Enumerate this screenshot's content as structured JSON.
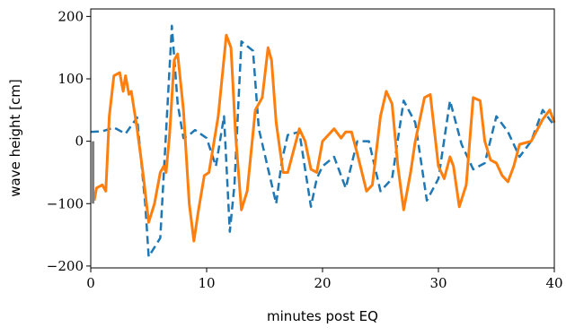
{
  "chart_data": {
    "type": "line",
    "xlabel": "minutes post EQ",
    "ylabel": "wave height [cm]",
    "xlim": [
      0,
      40
    ],
    "ylim": [
      -203,
      212
    ],
    "xticks": [
      0,
      10,
      20,
      30,
      40
    ],
    "yticks": [
      {
        "value": -200,
        "label": "−200"
      },
      {
        "value": -100,
        "label": "−100"
      },
      0,
      100,
      200
    ],
    "series": [
      {
        "color": "#1f77b4",
        "dash": true,
        "x": [
          0,
          1,
          2,
          3,
          4,
          4.7,
          5,
          6,
          7,
          7.5,
          8,
          8.5,
          9,
          10,
          10.8,
          11.5,
          12,
          12.4,
          13,
          14,
          14.5,
          15,
          16,
          16.5,
          17,
          18,
          19,
          19.5,
          20,
          21,
          22,
          23,
          24,
          25,
          26,
          27,
          28,
          29,
          30,
          31,
          32,
          33,
          34,
          35,
          36,
          37,
          38,
          39,
          40
        ],
        "values": [
          15,
          16,
          22,
          12,
          38,
          -100,
          -185,
          -155,
          185,
          60,
          5,
          10,
          18,
          5,
          -40,
          40,
          -145,
          -70,
          160,
          145,
          20,
          -20,
          -100,
          -30,
          10,
          15,
          -105,
          -60,
          -40,
          -25,
          -75,
          0,
          0,
          -80,
          -60,
          65,
          30,
          -95,
          -60,
          65,
          -5,
          -45,
          -35,
          40,
          15,
          -25,
          0,
          50,
          25
        ]
      },
      {
        "color": "#ff7f0e",
        "dash": false,
        "x": [
          0.3,
          0.5,
          1,
          1.3,
          1.6,
          2,
          2.5,
          2.8,
          3,
          3.3,
          3.5,
          4,
          4.5,
          5,
          5.5,
          6,
          6.3,
          6.5,
          6.8,
          7.2,
          7.5,
          8,
          8.5,
          8.9,
          9.3,
          9.8,
          10.2,
          11,
          11.7,
          12.1,
          12.5,
          13,
          13.5,
          14.2,
          14.8,
          15.3,
          15.6,
          16,
          16.6,
          17,
          17.5,
          18,
          18.5,
          19,
          19.5,
          20,
          21,
          21.6,
          22,
          22.5,
          23,
          23.8,
          24.3,
          25,
          25.5,
          26,
          26.5,
          27,
          27.6,
          28,
          28.8,
          29.3,
          30,
          30.5,
          31,
          31.3,
          31.8,
          32.4,
          33,
          33.6,
          34,
          34.5,
          35,
          35.5,
          36,
          36.5,
          37,
          38,
          39,
          39.6,
          40
        ],
        "values": [
          -95,
          -75,
          -70,
          -80,
          40,
          105,
          110,
          80,
          105,
          75,
          80,
          20,
          -50,
          -130,
          -100,
          -50,
          -40,
          -50,
          10,
          130,
          140,
          50,
          -100,
          -160,
          -110,
          -55,
          -50,
          40,
          170,
          150,
          10,
          -110,
          -80,
          50,
          70,
          150,
          130,
          30,
          -50,
          -50,
          -15,
          20,
          0,
          -45,
          -50,
          0,
          20,
          5,
          15,
          15,
          -20,
          -80,
          -70,
          40,
          80,
          60,
          -40,
          -110,
          -50,
          0,
          70,
          75,
          -40,
          -60,
          -25,
          -40,
          -105,
          -70,
          70,
          65,
          0,
          -30,
          -35,
          -55,
          -65,
          -40,
          -5,
          0,
          35,
          50,
          30
        ]
      },
      {
        "color": "#808080",
        "dash": false,
        "x": [
          0.2,
          0.2
        ],
        "values": [
          0,
          -100
        ]
      }
    ]
  }
}
